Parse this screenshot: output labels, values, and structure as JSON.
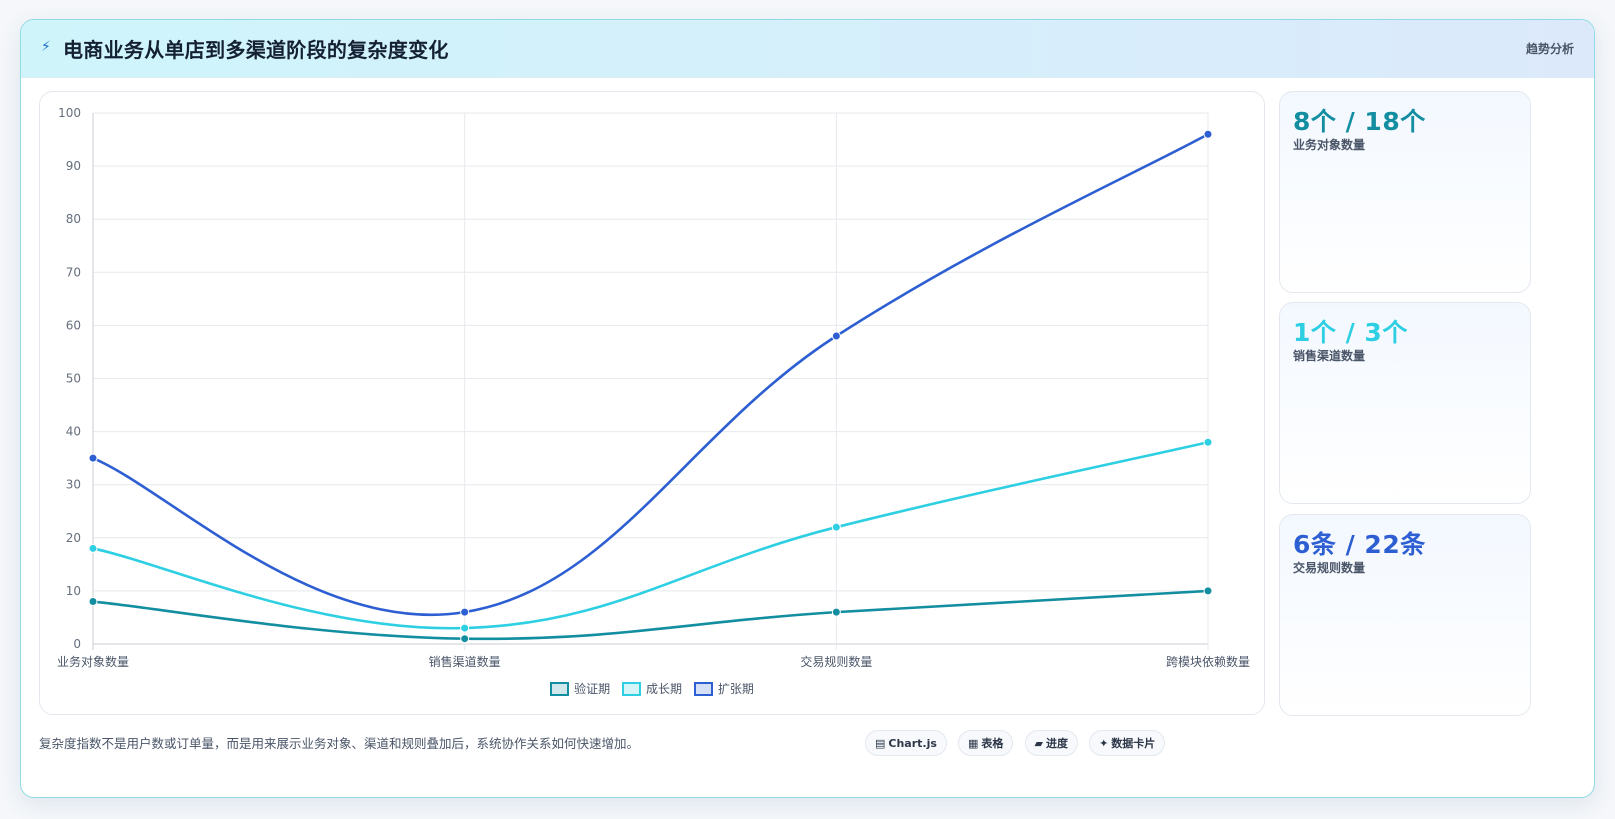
{
  "header": {
    "icon": "bolt-icon",
    "title": "电商业务从单店到多渠道阶段的复杂度变化",
    "mode_label": "趋势分析"
  },
  "chart_data": {
    "type": "line",
    "categories": [
      "业务对象数量",
      "销售渠道数量",
      "交易规则数量",
      "跨模块依赖数量"
    ],
    "series": [
      {
        "name": "验证期",
        "values": [
          8,
          1,
          6,
          10
        ],
        "color": "#138ea0"
      },
      {
        "name": "成长期",
        "values": [
          18,
          3,
          22,
          38
        ],
        "color": "#2ecfe3"
      },
      {
        "name": "扩张期",
        "values": [
          35,
          6,
          58,
          96
        ],
        "color": "#2d5fd2"
      }
    ],
    "ylim": [
      0,
      100
    ],
    "yticks": [
      0,
      10,
      20,
      30,
      40,
      50,
      60,
      70,
      80,
      90,
      100
    ],
    "grid": true,
    "legend_position": "bottom",
    "xlabel": "",
    "ylabel": ""
  },
  "stats": [
    {
      "value": "8个 / 18个",
      "label": "业务对象数量",
      "color": "#138ea0"
    },
    {
      "value": "1个 / 3个",
      "label": "销售渠道数量",
      "color": "#2ecfe3"
    },
    {
      "value": "6条 / 22条",
      "label": "交易规则数量",
      "color": "#2d5fd2"
    }
  ],
  "footer": {
    "note": "复杂度指数不是用户数或订单量，而是用来展示业务对象、渠道和规则叠加后，系统协作关系如何快速增加。"
  },
  "tabs": [
    {
      "icon": "▤",
      "label": "Chart.js",
      "icon_name": "chart-icon"
    },
    {
      "icon": "▦",
      "label": "表格",
      "icon_name": "table-icon"
    },
    {
      "icon": "▰",
      "label": "进度",
      "icon_name": "progress-icon"
    },
    {
      "icon": "✦",
      "label": "数据卡片",
      "icon_name": "card-icon"
    }
  ]
}
